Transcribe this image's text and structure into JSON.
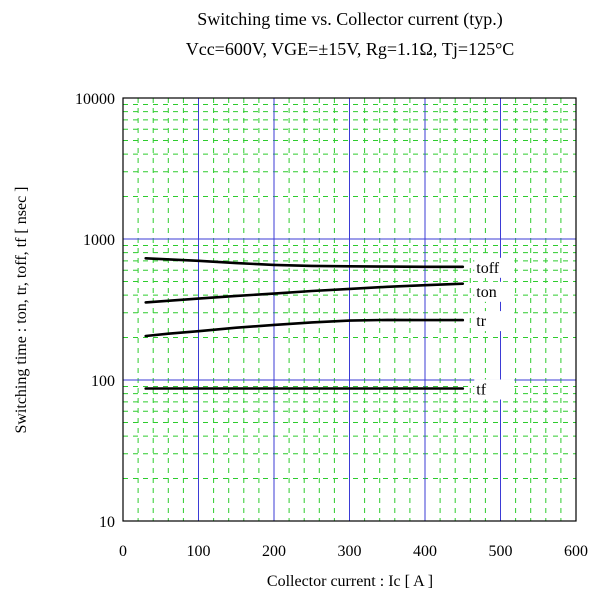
{
  "chart_data": {
    "type": "line",
    "title": "Switching time  vs.  Collector current  (typ.)",
    "subtitle": "Vcc=600V, VGE=±15V, Rg=1.1Ω, Tj=125°C",
    "xlabel": "Collector current : Ic [ A ]",
    "ylabel": "Switching time : ton, tr, toff, tf [ nsec ]",
    "x_scale": "linear",
    "y_scale": "log",
    "xlim": [
      0,
      600
    ],
    "ylim": [
      10,
      10000
    ],
    "x_ticks": [
      0,
      100,
      200,
      300,
      400,
      500,
      600
    ],
    "x_tick_labels": [
      "0",
      "100",
      "200",
      "300",
      "400",
      "500",
      "600"
    ],
    "y_ticks": [
      10,
      100,
      1000,
      10000
    ],
    "y_tick_labels": [
      "10",
      "100",
      "1000",
      "10000"
    ],
    "grid": true,
    "colors": {
      "major_grid": "#3b3bd6",
      "minor_grid": "#2ecc2e",
      "series": "#000000",
      "frame": "#000000"
    },
    "series": [
      {
        "name": "toff",
        "x": [
          30,
          100,
          150,
          200,
          250,
          300,
          350,
          400,
          450
        ],
        "values": [
          730,
          700,
          675,
          655,
          645,
          640,
          637,
          635,
          635
        ]
      },
      {
        "name": "ton",
        "x": [
          30,
          100,
          150,
          200,
          250,
          300,
          350,
          400,
          450
        ],
        "values": [
          355,
          378,
          395,
          410,
          428,
          443,
          458,
          470,
          482
        ]
      },
      {
        "name": "tr",
        "x": [
          30,
          60,
          100,
          150,
          200,
          250,
          300,
          350,
          400,
          450
        ],
        "values": [
          205,
          213,
          222,
          235,
          246,
          256,
          264,
          267,
          266,
          266
        ]
      },
      {
        "name": "tf",
        "x": [
          30,
          100,
          200,
          300,
          400,
          450
        ],
        "values": [
          87,
          87,
          87,
          87,
          87,
          87
        ]
      }
    ]
  }
}
